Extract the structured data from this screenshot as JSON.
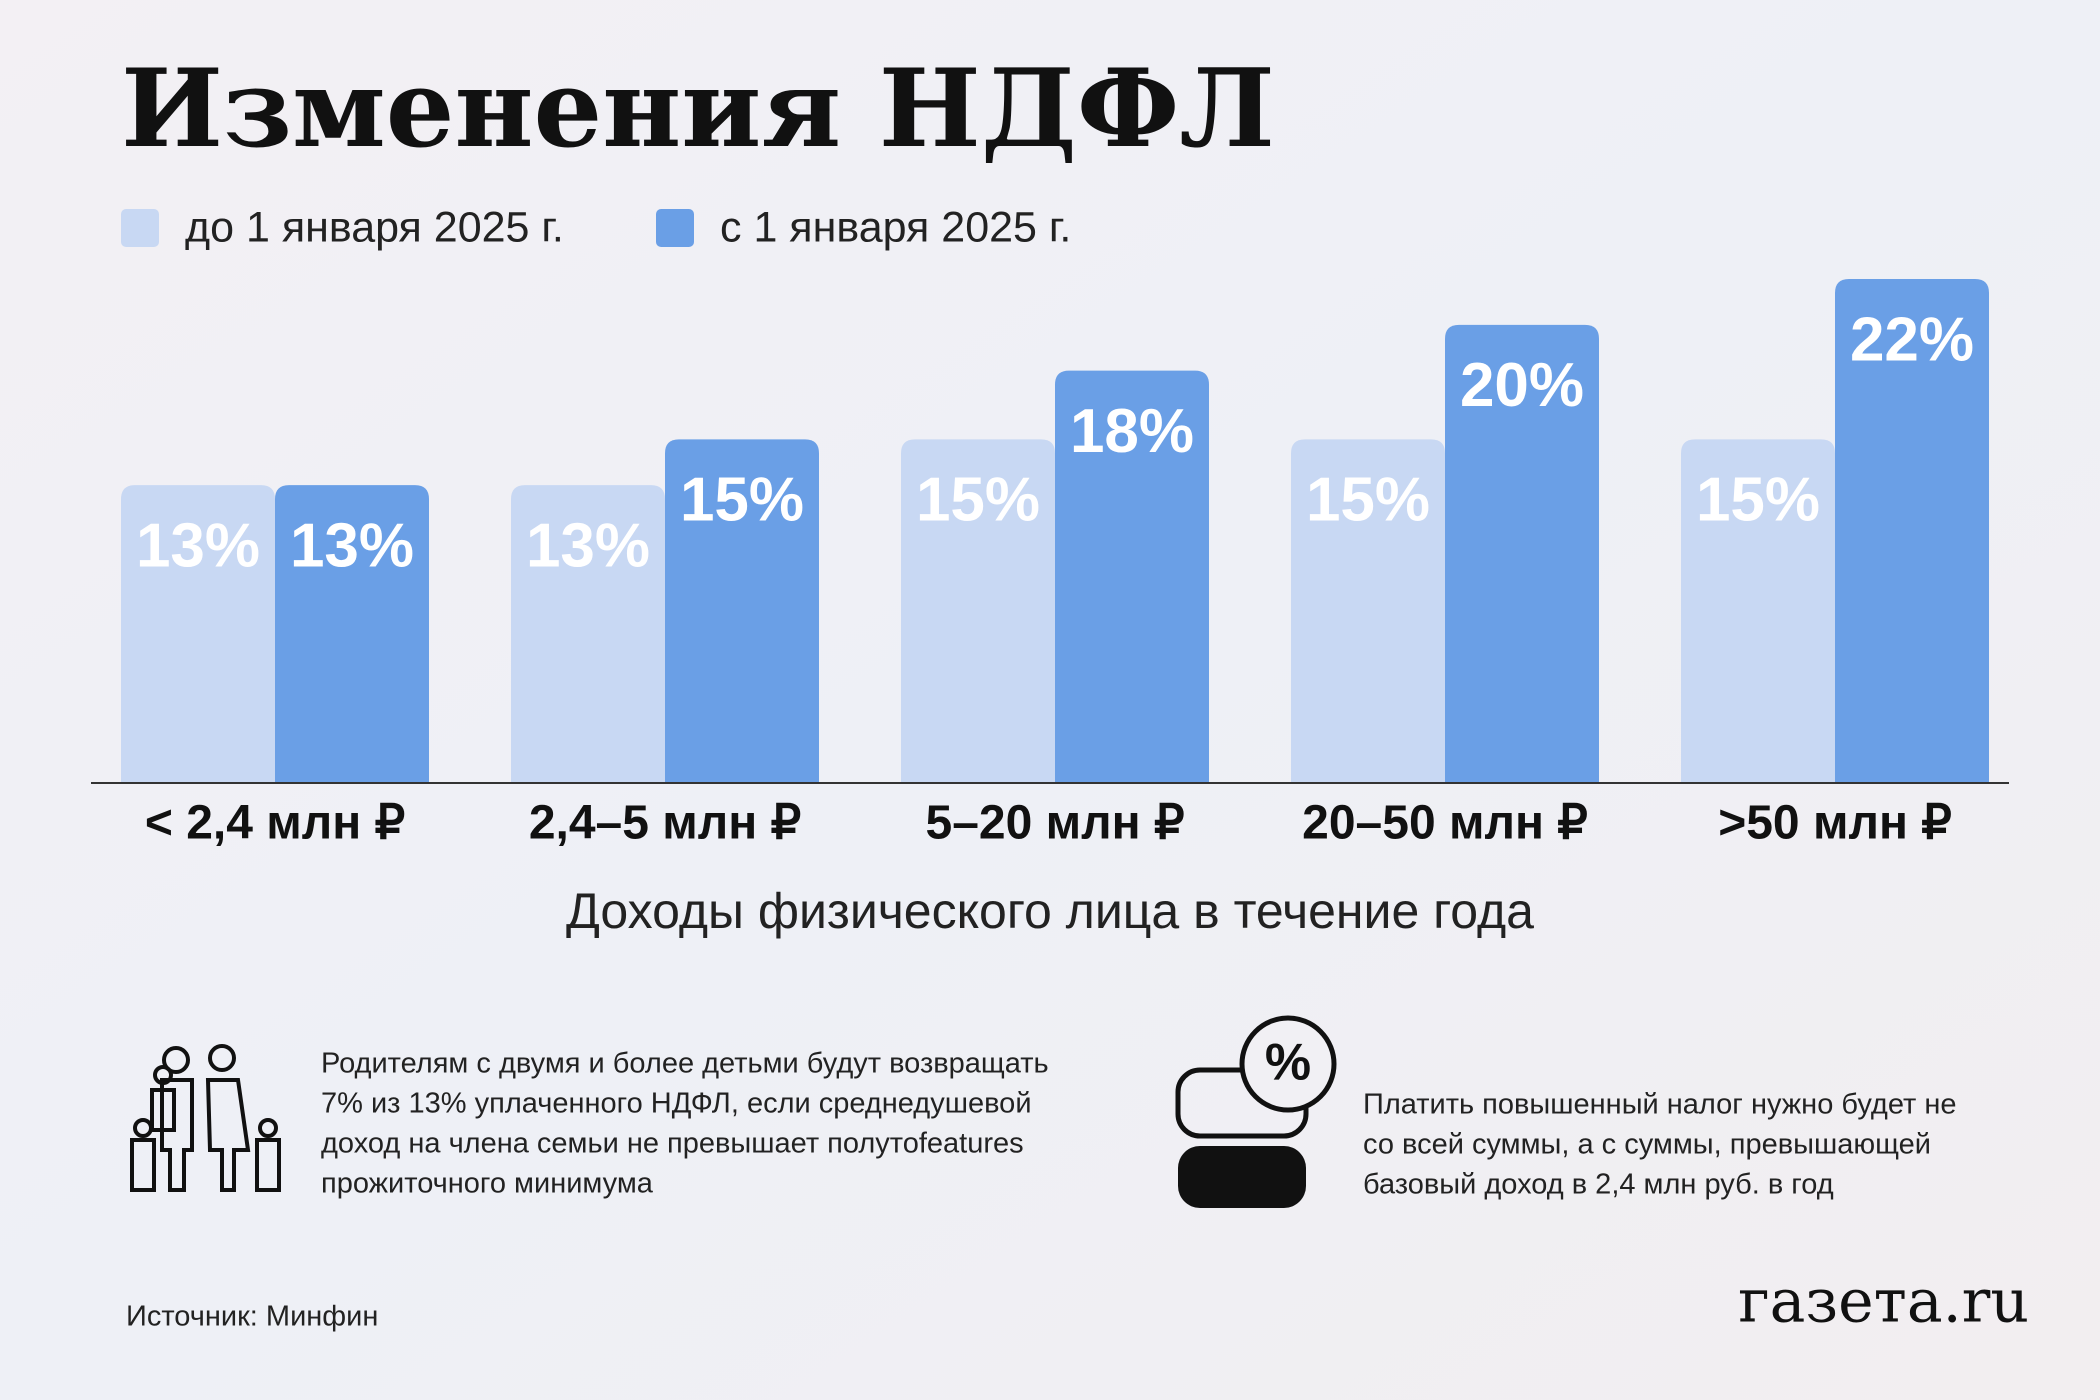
{
  "chart_data": {
    "type": "bar",
    "title": "Изменения НДФЛ",
    "categories": [
      "< 2,4 млн ₽",
      "2,4–5 млн ₽",
      "5–20 млн ₽",
      "20–50 млн ₽",
      ">50 млн ₽"
    ],
    "series": [
      {
        "name": "до 1 января 2025 г.",
        "color": "#c8d8f3",
        "values": [
          13,
          13,
          15,
          15,
          15
        ],
        "value_labels": [
          "13%",
          "13%",
          "15%",
          "15%",
          "15%"
        ]
      },
      {
        "name": "с 1 января 2025 г.",
        "color": "#6a9fe6",
        "values": [
          13,
          15,
          18,
          20,
          22
        ],
        "value_labels": [
          "13%",
          "15%",
          "18%",
          "20%",
          "22%"
        ]
      }
    ],
    "x_label": "Доходы физического лица в течение года"
  },
  "notes": [
    {
      "lines": [
        "Родителям с двумя и более детьми будут возвращать",
        "7% из 13% уплаченного НДФЛ, если среднедушевой",
        "доход на члена семьи не превышает полутоfeatures",
        "прожиточного минимума"
      ]
    },
    {
      "lines": [
        "Платить повышенный налог нужно будет не",
        "со всей суммы, а с суммы, превышающей",
        "базовый доход в 2,4 млн руб. в год"
      ]
    }
  ],
  "source": "Источник: Минфин",
  "logo": "газета.ru"
}
